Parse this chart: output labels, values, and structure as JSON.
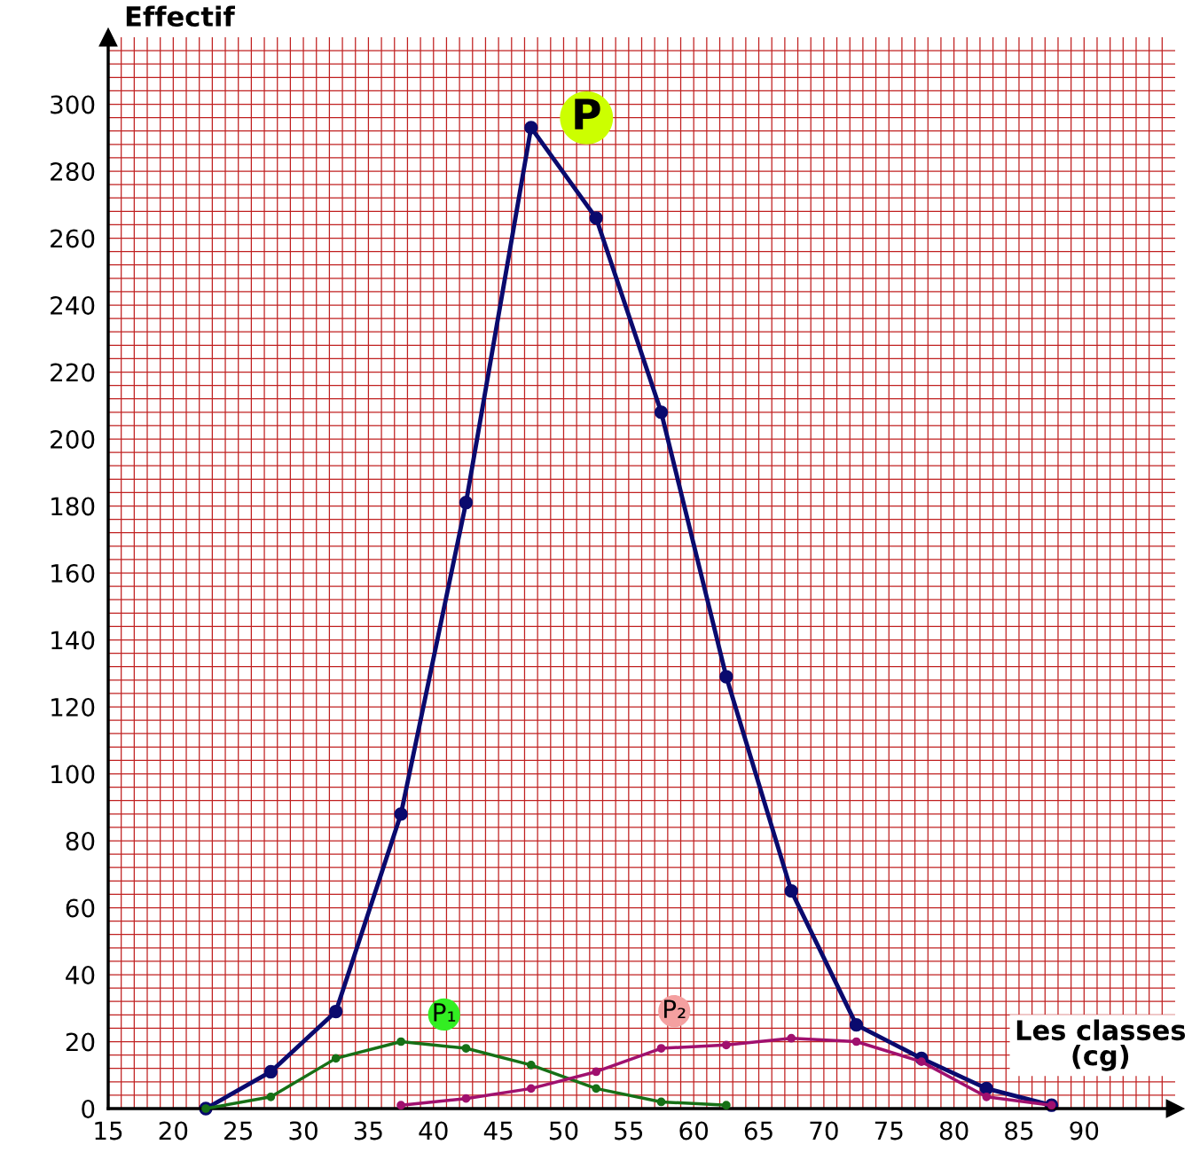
{
  "chart_data": {
    "type": "line",
    "xlabel": "Les classes\n(cg)",
    "ylabel": "Effectif",
    "xlim": [
      15,
      97
    ],
    "ylim": [
      0,
      320
    ],
    "xticks": [
      15,
      {
        "value": 16,
        "label": null
      },
      {
        "value": 17,
        "label": null
      },
      {
        "value": 18,
        "label": null
      },
      {
        "value": 19,
        "label": null
      },
      20,
      {
        "value": 21,
        "label": null
      },
      {
        "value": 22,
        "label": null
      },
      {
        "value": 23,
        "label": null
      },
      {
        "value": 24,
        "label": null
      },
      25,
      {
        "value": 26,
        "label": null
      },
      {
        "value": 27,
        "label": null
      },
      {
        "value": 28,
        "label": null
      },
      {
        "value": 29,
        "label": null
      },
      30,
      {
        "value": 31,
        "label": null
      },
      {
        "value": 32,
        "label": null
      },
      {
        "value": 33,
        "label": null
      },
      {
        "value": 34,
        "label": null
      },
      35,
      {
        "value": 36,
        "label": null
      },
      {
        "value": 37,
        "label": null
      },
      {
        "value": 38,
        "label": null
      },
      {
        "value": 39,
        "label": null
      },
      40,
      {
        "value": 41,
        "label": null
      },
      {
        "value": 42,
        "label": null
      },
      {
        "value": 43,
        "label": null
      },
      {
        "value": 44,
        "label": null
      },
      45,
      {
        "value": 46,
        "label": null
      },
      {
        "value": 47,
        "label": null
      },
      {
        "value": 48,
        "label": null
      },
      {
        "value": 49,
        "label": null
      },
      50,
      {
        "value": 51,
        "label": null
      },
      {
        "value": 52,
        "label": null
      },
      {
        "value": 53,
        "label": null
      },
      {
        "value": 54,
        "label": null
      },
      55,
      {
        "value": 56,
        "label": null
      },
      {
        "value": 57,
        "label": null
      },
      {
        "value": 58,
        "label": null
      },
      {
        "value": 59,
        "label": null
      },
      60,
      {
        "value": 61,
        "label": null
      },
      {
        "value": 62,
        "label": null
      },
      {
        "value": 63,
        "label": null
      },
      {
        "value": 64,
        "label": null
      },
      65,
      {
        "value": 66,
        "label": null
      },
      {
        "value": 67,
        "label": null
      },
      {
        "value": 68,
        "label": null
      },
      {
        "value": 69,
        "label": null
      },
      70,
      {
        "value": 71,
        "label": null
      },
      {
        "value": 72,
        "label": null
      },
      {
        "value": 73,
        "label": null
      },
      {
        "value": 74,
        "label": null
      },
      75,
      {
        "value": 76,
        "label": null
      },
      {
        "value": 77,
        "label": null
      },
      {
        "value": 78,
        "label": null
      },
      {
        "value": 79,
        "label": null
      },
      80,
      {
        "value": 81,
        "label": null
      },
      {
        "value": 82,
        "label": null
      },
      {
        "value": 83,
        "label": null
      },
      {
        "value": 84,
        "label": null
      },
      85,
      {
        "value": 86,
        "label": null
      },
      {
        "value": 87,
        "label": null
      },
      {
        "value": 88,
        "label": null
      },
      {
        "value": 89,
        "label": null
      },
      90,
      {
        "value": 91,
        "label": null
      },
      {
        "value": 92,
        "label": null
      },
      {
        "value": 93,
        "label": null
      },
      {
        "value": 94,
        "label": null
      },
      {
        "value": 95,
        "label": null
      },
      {
        "value": 96,
        "label": null
      }
    ],
    "yticks": [
      0,
      {
        "value": 4,
        "label": null
      },
      {
        "value": 8,
        "label": null
      },
      {
        "value": 12,
        "label": null
      },
      {
        "value": 16,
        "label": null
      },
      20,
      {
        "value": 24,
        "label": null
      },
      {
        "value": 28,
        "label": null
      },
      {
        "value": 32,
        "label": null
      },
      {
        "value": 36,
        "label": null
      },
      40,
      {
        "value": 44,
        "label": null
      },
      {
        "value": 48,
        "label": null
      },
      {
        "value": 52,
        "label": null
      },
      {
        "value": 56,
        "label": null
      },
      60,
      {
        "value": 64,
        "label": null
      },
      {
        "value": 68,
        "label": null
      },
      {
        "value": 72,
        "label": null
      },
      {
        "value": 76,
        "label": null
      },
      80,
      {
        "value": 84,
        "label": null
      },
      {
        "value": 88,
        "label": null
      },
      {
        "value": 92,
        "label": null
      },
      {
        "value": 96,
        "label": null
      },
      100,
      {
        "value": 104,
        "label": null
      },
      {
        "value": 108,
        "label": null
      },
      {
        "value": 112,
        "label": null
      },
      {
        "value": 116,
        "label": null
      },
      120,
      {
        "value": 124,
        "label": null
      },
      {
        "value": 128,
        "label": null
      },
      {
        "value": 132,
        "label": null
      },
      {
        "value": 136,
        "label": null
      },
      140,
      {
        "value": 144,
        "label": null
      },
      {
        "value": 148,
        "label": null
      },
      {
        "value": 152,
        "label": null
      },
      {
        "value": 156,
        "label": null
      },
      160,
      {
        "value": 164,
        "label": null
      },
      {
        "value": 168,
        "label": null
      },
      {
        "value": 172,
        "label": null
      },
      {
        "value": 176,
        "label": null
      },
      180,
      {
        "value": 184,
        "label": null
      },
      {
        "value": 188,
        "label": null
      },
      {
        "value": 192,
        "label": null
      },
      {
        "value": 196,
        "label": null
      },
      200,
      {
        "value": 204,
        "label": null
      },
      {
        "value": 208,
        "label": null
      },
      {
        "value": 212,
        "label": null
      },
      {
        "value": 216,
        "label": null
      },
      220,
      {
        "value": 224,
        "label": null
      },
      {
        "value": 228,
        "label": null
      },
      {
        "value": 232,
        "label": null
      },
      {
        "value": 236,
        "label": null
      },
      240,
      {
        "value": 244,
        "label": null
      },
      {
        "value": 248,
        "label": null
      },
      {
        "value": 252,
        "label": null
      },
      {
        "value": 256,
        "label": null
      },
      260,
      {
        "value": 264,
        "label": null
      },
      {
        "value": 268,
        "label": null
      },
      {
        "value": 272,
        "label": null
      },
      {
        "value": 276,
        "label": null
      },
      280,
      {
        "value": 284,
        "label": null
      },
      {
        "value": 288,
        "label": null
      },
      {
        "value": 292,
        "label": null
      },
      {
        "value": 296,
        "label": null
      },
      300,
      {
        "value": 304,
        "label": null
      },
      {
        "value": 308,
        "label": null
      },
      {
        "value": 312,
        "label": null
      },
      {
        "value": 316,
        "label": null
      }
    ],
    "grid": true,
    "marker": "circle",
    "line_style": "solid",
    "series": [
      {
        "name": "P",
        "color": "#0a0a6e",
        "x": [
          22.5,
          27.5,
          32.5,
          37.5,
          42.5,
          47.5,
          52.5,
          57.5,
          62.5,
          67.5,
          72.5,
          77.5,
          82.5,
          87.5
        ],
        "values": [
          0,
          11,
          29,
          88,
          181,
          293,
          266,
          208,
          129,
          65,
          25,
          15,
          6,
          1
        ]
      },
      {
        "name": "P₁",
        "color": "#167016",
        "x": [
          22.5,
          27.5,
          32.5,
          37.5,
          42.5,
          47.5,
          52.5,
          57.5,
          62.5
        ],
        "values": [
          0,
          3.5,
          15,
          20,
          18,
          13,
          6,
          2,
          1
        ]
      },
      {
        "name": "P₂",
        "color": "#a0106e",
        "x": [
          37.5,
          42.5,
          47.5,
          52.5,
          57.5,
          62.5,
          67.5,
          72.5,
          77.5,
          82.5,
          87.5
        ],
        "values": [
          1,
          3,
          6,
          11,
          18,
          19,
          21,
          20,
          14,
          3.5,
          1
        ]
      }
    ]
  }
}
